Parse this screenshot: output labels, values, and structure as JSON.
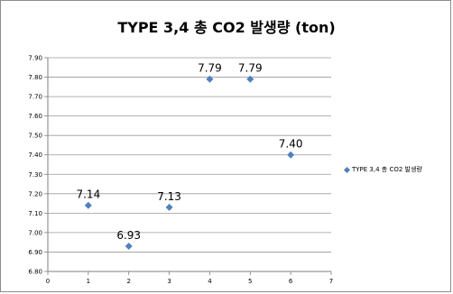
{
  "chart_data": {
    "type": "scatter",
    "title": "TYPE 3,4 총 CO2 발생량 (ton)",
    "xlabel": "",
    "ylabel": "",
    "xlim": [
      0,
      7
    ],
    "ylim": [
      6.8,
      7.9
    ],
    "x_ticks": [
      "0",
      "1",
      "2",
      "3",
      "4",
      "5",
      "6",
      "7"
    ],
    "y_ticks": [
      "6.80",
      "6.90",
      "7.00",
      "7.10",
      "7.20",
      "7.30",
      "7.40",
      "7.50",
      "7.60",
      "7.70",
      "7.80",
      "7.90"
    ],
    "grid": "horizontal",
    "legend_position": "right",
    "series": [
      {
        "name": "TYPE 3,4 총 CO2 발생량",
        "color": "#4f81bd",
        "marker": "diamond",
        "x": [
          1,
          2,
          3,
          4,
          5,
          6
        ],
        "y": [
          7.14,
          6.93,
          7.13,
          7.79,
          7.79,
          7.4
        ],
        "labels": [
          "7.14",
          "6.93",
          "7.13",
          "7.79",
          "7.79",
          "7.40"
        ]
      }
    ]
  }
}
